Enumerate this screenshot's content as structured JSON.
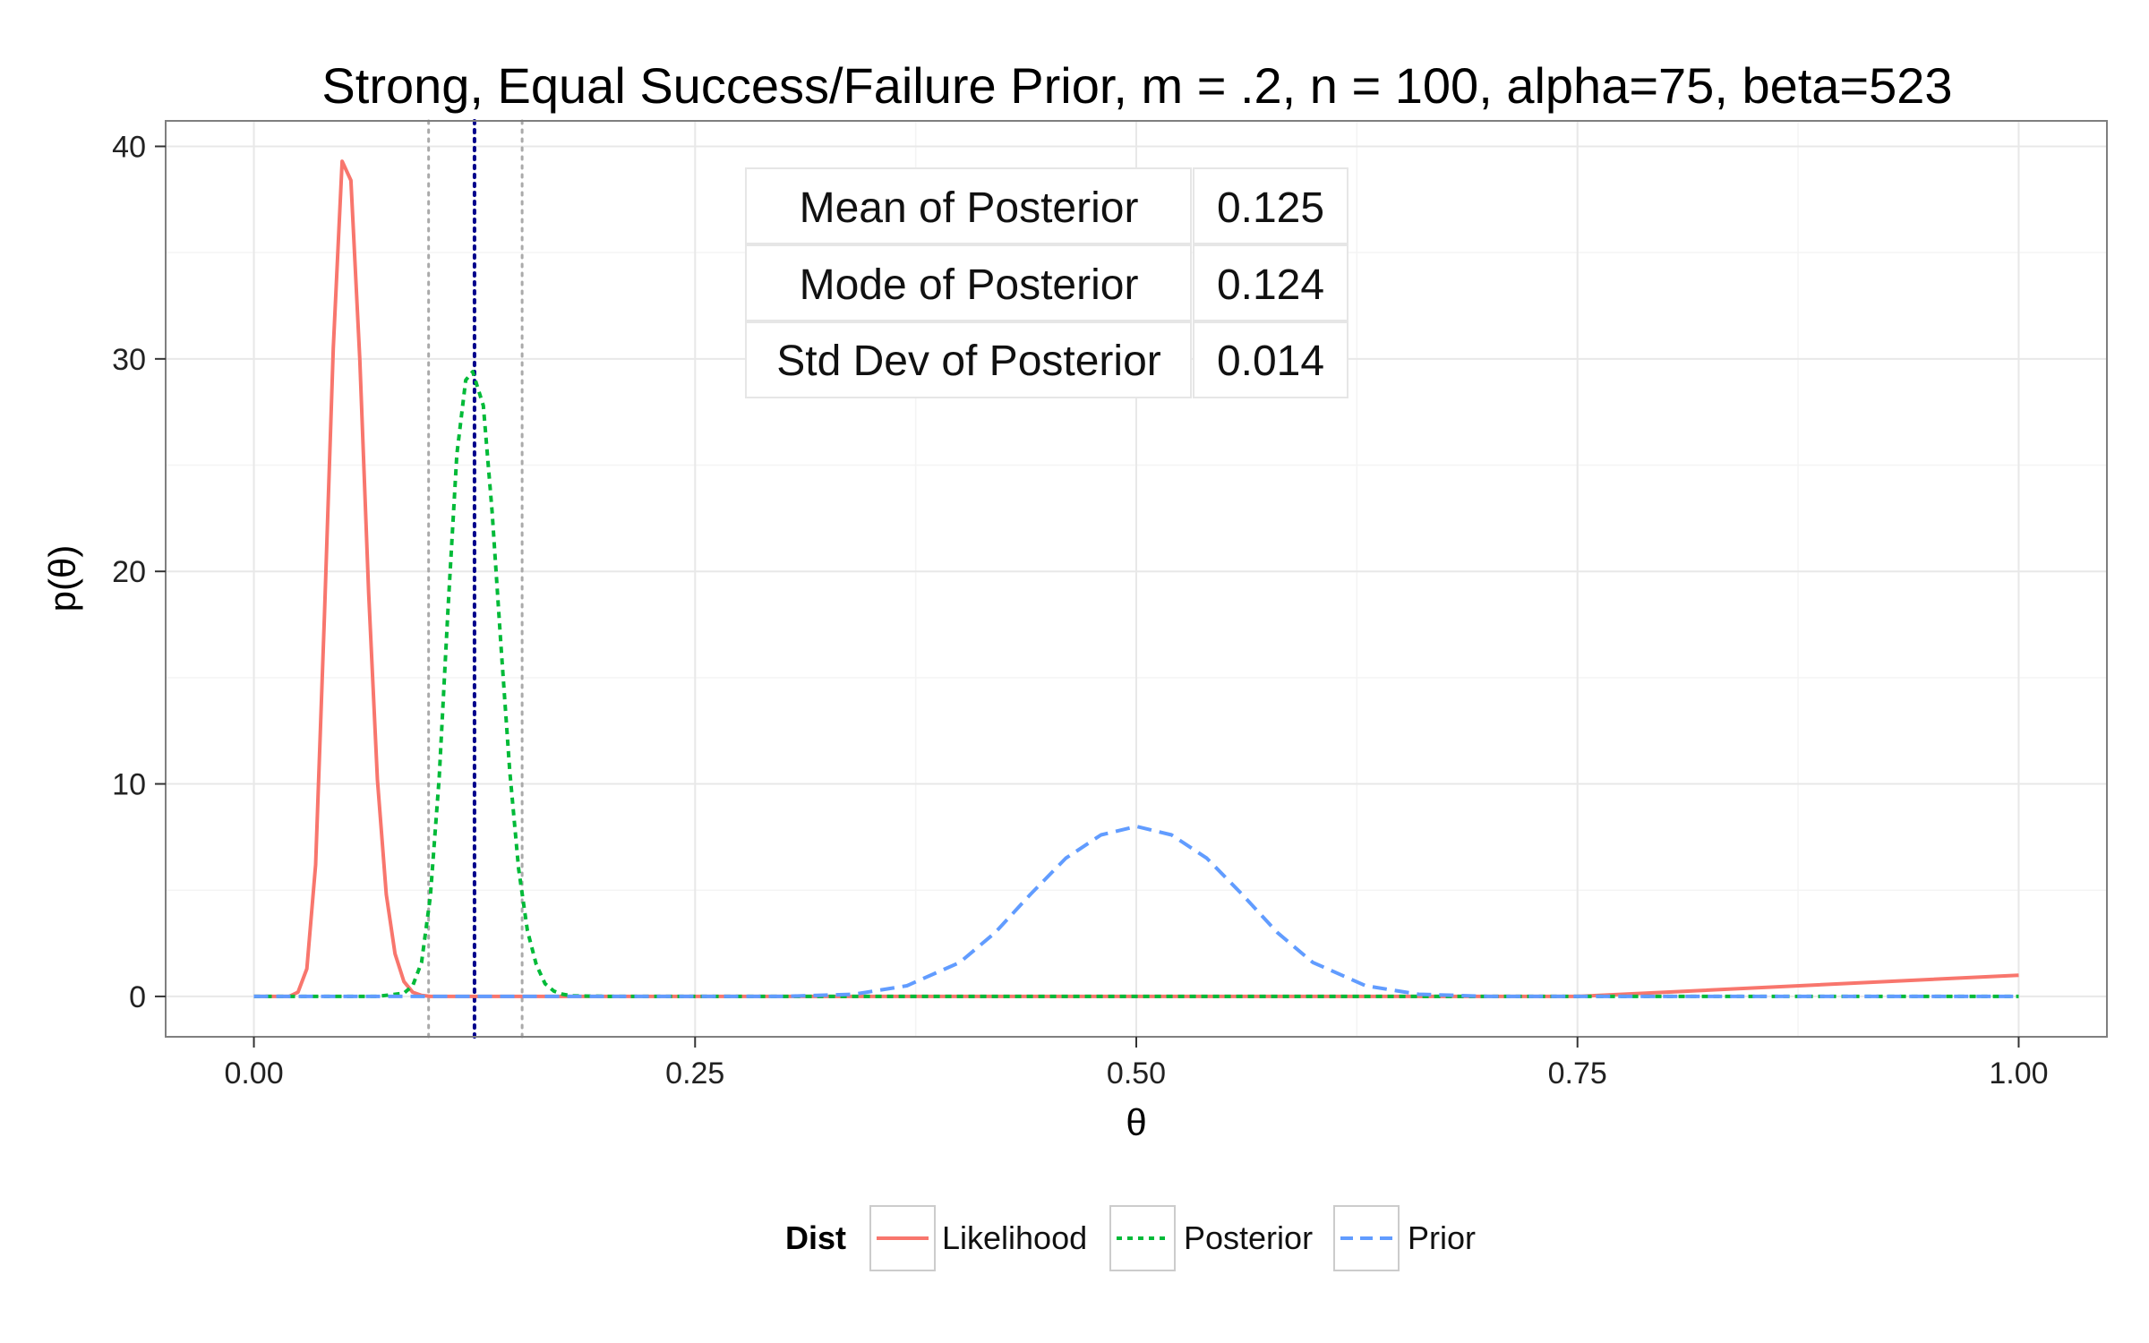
{
  "chart_data": {
    "type": "line",
    "title": "Strong, Equal Success/Failure Prior, m = .2, n = 100, alpha=75, beta=523",
    "xlabel": "θ",
    "ylabel": "p(θ)",
    "xlim": [
      -0.05,
      1.05
    ],
    "ylim": [
      -1.9,
      41.2
    ],
    "xticks": [
      0,
      0.25,
      0.5,
      0.75,
      1
    ],
    "xtick_labels": [
      "0.00",
      "0.25",
      "0.50",
      "0.75",
      "1.00"
    ],
    "yticks": [
      0,
      10,
      20,
      30,
      40
    ],
    "ytick_labels": [
      "0",
      "10",
      "20",
      "30",
      "40"
    ],
    "grid": true,
    "legend_position": "bottom",
    "legend_title": "Dist",
    "series": [
      {
        "name": "Likelihood",
        "color": "#F8766D",
        "dash": "solid",
        "x": [
          0,
          0.02,
          0.025,
          0.03,
          0.035,
          0.04,
          0.045,
          0.05,
          0.055,
          0.06,
          0.065,
          0.07,
          0.075,
          0.08,
          0.085,
          0.09,
          0.095,
          0.1,
          0.11,
          0.12,
          0.15,
          0.2,
          0.3,
          0.5,
          0.75,
          1
        ],
        "y": [
          0,
          0,
          0.2,
          1.3,
          6.2,
          18.0,
          30.5,
          39.3,
          38.4,
          30.0,
          19.0,
          10.2,
          4.8,
          2.0,
          0.7,
          0.2,
          0.05,
          0,
          0,
          0,
          0,
          0,
          0,
          0,
          0,
          1
        ]
      },
      {
        "name": "Posterior",
        "color": "#00BA38",
        "dash": "short",
        "x": [
          0,
          0.07,
          0.085,
          0.09,
          0.095,
          0.1,
          0.105,
          0.11,
          0.115,
          0.12,
          0.124,
          0.13,
          0.135,
          0.14,
          0.145,
          0.15,
          0.155,
          0.16,
          0.165,
          0.17,
          0.175,
          0.18,
          0.2,
          0.3,
          0.5,
          0.75,
          1
        ],
        "y": [
          0,
          0,
          0.15,
          0.5,
          1.6,
          4.7,
          10.3,
          18.2,
          25.5,
          29.0,
          29.4,
          27.8,
          22.8,
          16.5,
          10.6,
          6.0,
          3.1,
          1.5,
          0.6,
          0.25,
          0.1,
          0.03,
          0,
          0,
          0,
          0,
          0
        ]
      },
      {
        "name": "Prior",
        "color": "#619CFF",
        "dash": "long",
        "x": [
          0,
          0.3,
          0.34,
          0.37,
          0.4,
          0.42,
          0.44,
          0.46,
          0.48,
          0.5,
          0.52,
          0.54,
          0.56,
          0.58,
          0.6,
          0.63,
          0.66,
          0.7,
          1
        ],
        "y": [
          0,
          0,
          0.1,
          0.5,
          1.6,
          3.0,
          4.8,
          6.5,
          7.6,
          8.0,
          7.6,
          6.5,
          4.8,
          3.0,
          1.6,
          0.5,
          0.1,
          0,
          0
        ]
      }
    ],
    "reference_lines": [
      {
        "name": "posterior-mean",
        "x": 0.125,
        "color": "#00008B",
        "style": "dotted"
      },
      {
        "name": "posterior-lower",
        "x": 0.099,
        "color": "#AAAAAA",
        "style": "dotted"
      },
      {
        "name": "posterior-upper",
        "x": 0.152,
        "color": "#AAAAAA",
        "style": "dotted"
      }
    ],
    "stats_table": [
      {
        "label": "Mean of Posterior",
        "value": "0.125"
      },
      {
        "label": "Mode of Posterior",
        "value": "0.124"
      },
      {
        "label": "Std Dev of Posterior",
        "value": "0.014"
      }
    ]
  }
}
